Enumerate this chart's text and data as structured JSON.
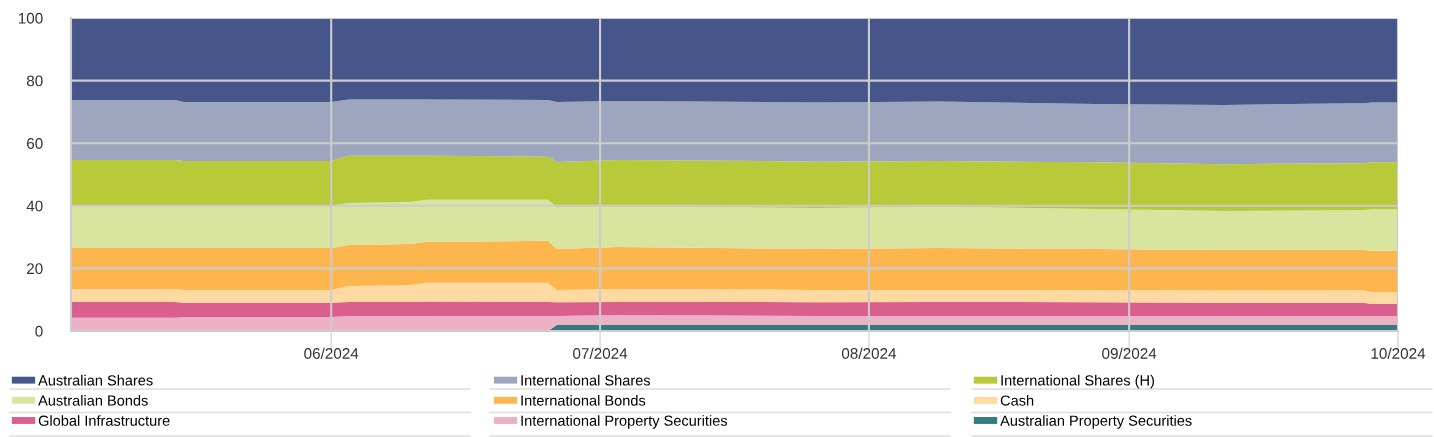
{
  "chart_data": {
    "type": "area",
    "stacked": true,
    "x": [
      "2024-05-31",
      "2024-06-12",
      "2024-06-13",
      "2024-06-30",
      "2024-07-02",
      "2024-07-09",
      "2024-07-11",
      "2024-07-25",
      "2024-07-26",
      "2024-08-02",
      "2024-08-11",
      "2024-08-25",
      "2024-09-08",
      "2024-09-26",
      "2024-10-11",
      "2024-10-26",
      "2024-10-27",
      "2024-10-28",
      "2024-10-31"
    ],
    "series": [
      {
        "name": "Australian Property Securities",
        "color": "#357b7e",
        "values": [
          0,
          0,
          0,
          0,
          0,
          0,
          0,
          0,
          1.9,
          1.9,
          1.9,
          1.9,
          1.9,
          1.9,
          1.9,
          1.9,
          1.9,
          1.9,
          1.9
        ]
      },
      {
        "name": "International Property Securities",
        "color": "#edb1c7",
        "values": [
          4.2,
          4.2,
          4.5,
          4.5,
          4.8,
          4.8,
          4.8,
          4.7,
          2.9,
          3.2,
          3.1,
          2.9,
          2.9,
          2.9,
          2.9,
          2.9,
          2.9,
          2.9,
          2.9
        ]
      },
      {
        "name": "Global Infrastructure",
        "color": "#db5f8e",
        "values": [
          5.1,
          5.1,
          4.5,
          4.5,
          4.5,
          4.5,
          4.6,
          4.6,
          4.4,
          4.2,
          4.3,
          4.4,
          4.5,
          4.4,
          4.2,
          4.2,
          4.2,
          3.8,
          3.8
        ]
      },
      {
        "name": "Cash",
        "color": "#fed9a2",
        "values": [
          4.1,
          4.1,
          4.1,
          4.1,
          5.1,
          5.3,
          6.0,
          6.1,
          3.9,
          4.1,
          4.1,
          3.9,
          3.8,
          3.9,
          3.9,
          4.0,
          4.0,
          3.9,
          3.9
        ]
      },
      {
        "name": "International Bonds",
        "color": "#fdb64e",
        "values": [
          13.1,
          13.1,
          13.4,
          13.4,
          13.1,
          13.2,
          13.1,
          13.4,
          13.1,
          13.4,
          13.2,
          13.1,
          13.4,
          13.1,
          13.0,
          12.9,
          12.9,
          13.1,
          13.1
        ]
      },
      {
        "name": "Australian Bonds",
        "color": "#d9e49e",
        "values": [
          13.5,
          13.5,
          13.5,
          13.5,
          13.4,
          13.4,
          13.4,
          13.1,
          13.4,
          12.9,
          13.0,
          13.1,
          13.2,
          12.8,
          12.4,
          12.7,
          12.7,
          13.3,
          13.3
        ]
      },
      {
        "name": "International Shares (H)",
        "color": "#b8c93a",
        "values": [
          14.6,
          14.6,
          14.3,
          14.3,
          15.1,
          14.8,
          14.1,
          13.8,
          14.4,
          14.9,
          14.9,
          14.8,
          14.6,
          14.9,
          15.0,
          15.0,
          15.0,
          15.0,
          15.0
        ]
      },
      {
        "name": "International Shares",
        "color": "#9ea5be",
        "values": [
          19.2,
          19.2,
          18.9,
          18.9,
          18.0,
          18.0,
          18.0,
          18.1,
          19.2,
          18.9,
          18.8,
          18.9,
          19.0,
          18.6,
          18.9,
          19.2,
          19.2,
          19.1,
          19.1
        ]
      },
      {
        "name": "Australian Shares",
        "color": "#46568a",
        "values": [
          26.2,
          26.2,
          26.8,
          26.8,
          26.0,
          26.0,
          26.0,
          26.2,
          26.8,
          26.5,
          26.7,
          27.0,
          26.7,
          27.5,
          27.8,
          27.2,
          27.2,
          27.0,
          27.0
        ]
      }
    ],
    "xlim": [
      "2024-05-31",
      "2024-10-31"
    ],
    "xticks": [
      {
        "value": "2024-06-30",
        "label": "06/2024"
      },
      {
        "value": "2024-07-31",
        "label": "07/2024"
      },
      {
        "value": "2024-08-31",
        "label": "08/2024"
      },
      {
        "value": "2024-09-30",
        "label": "09/2024"
      },
      {
        "value": "2024-10-31",
        "label": "10/2024"
      }
    ],
    "ylim": [
      0,
      100
    ],
    "yticks": [
      0,
      20,
      40,
      60,
      80,
      100
    ],
    "grid": true,
    "legend": "bottom"
  }
}
